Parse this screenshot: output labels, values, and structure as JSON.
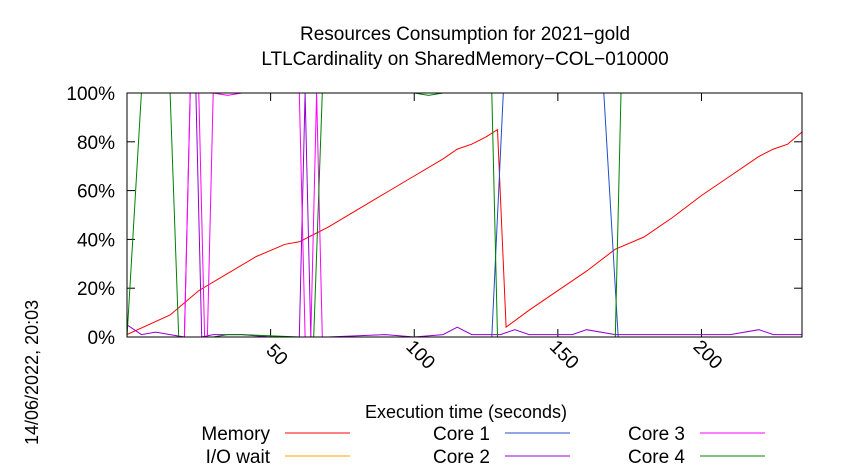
{
  "chart_data": {
    "type": "line",
    "title": "Resources Consumption for 2021−gold",
    "subtitle": "LTLCardinality on SharedMemory−COL−010000",
    "xlabel": "Execution time (seconds)",
    "ylabel": "",
    "side_label": "14/06/2022, 20:03",
    "xlim": [
      0,
      235
    ],
    "ylim": [
      0,
      100
    ],
    "x_ticks": [
      50,
      100,
      150,
      200
    ],
    "y_ticks": [
      0,
      20,
      40,
      60,
      80,
      100
    ],
    "y_tick_labels": [
      "0%",
      "20%",
      "40%",
      "60%",
      "80%",
      "100%"
    ],
    "grid": false,
    "legend_position": "bottom",
    "series": [
      {
        "name": "Memory",
        "color": "#ff0000",
        "points": [
          [
            0,
            1
          ],
          [
            15,
            9
          ],
          [
            25,
            19
          ],
          [
            35,
            26
          ],
          [
            45,
            33
          ],
          [
            55,
            38
          ],
          [
            60,
            39
          ],
          [
            65,
            42
          ],
          [
            70,
            45
          ],
          [
            80,
            52
          ],
          [
            90,
            59
          ],
          [
            100,
            66
          ],
          [
            110,
            73
          ],
          [
            115,
            77
          ],
          [
            120,
            79
          ],
          [
            125,
            82
          ],
          [
            129,
            85
          ],
          [
            132,
            4
          ],
          [
            140,
            11
          ],
          [
            150,
            19
          ],
          [
            160,
            27
          ],
          [
            170,
            36
          ],
          [
            180,
            41
          ],
          [
            190,
            49
          ],
          [
            200,
            58
          ],
          [
            210,
            66
          ],
          [
            220,
            74
          ],
          [
            225,
            77
          ],
          [
            230,
            79
          ],
          [
            235,
            84
          ]
        ]
      },
      {
        "name": "I/O wait",
        "color": "#ffa500",
        "points": [
          [
            0,
            0
          ],
          [
            235,
            0
          ]
        ]
      },
      {
        "name": "Core 1",
        "color": "#1f4fc8",
        "points": [
          [
            0,
            0
          ],
          [
            127,
            0
          ],
          [
            131,
            100
          ],
          [
            166,
            100
          ],
          [
            171,
            0
          ],
          [
            235,
            0
          ]
        ]
      },
      {
        "name": "Core 2",
        "color": "#9400d3",
        "points": [
          [
            0,
            5
          ],
          [
            5,
            1
          ],
          [
            10,
            2
          ],
          [
            15,
            1
          ],
          [
            20,
            0
          ],
          [
            22,
            100
          ],
          [
            24,
            100
          ],
          [
            26,
            0
          ],
          [
            30,
            1
          ],
          [
            40,
            1
          ],
          [
            50,
            0
          ],
          [
            60,
            0
          ],
          [
            62,
            100
          ],
          [
            64,
            0
          ],
          [
            70,
            0
          ],
          [
            90,
            1
          ],
          [
            100,
            0
          ],
          [
            110,
            1
          ],
          [
            115,
            4
          ],
          [
            120,
            1
          ],
          [
            130,
            1
          ],
          [
            135,
            3
          ],
          [
            140,
            1
          ],
          [
            155,
            1
          ],
          [
            160,
            3
          ],
          [
            170,
            1
          ],
          [
            180,
            1
          ],
          [
            200,
            1
          ],
          [
            210,
            1
          ],
          [
            220,
            3
          ],
          [
            225,
            1
          ],
          [
            235,
            1
          ]
        ]
      },
      {
        "name": "Core 3",
        "color": "#ff00ff",
        "points": [
          [
            0,
            0
          ],
          [
            20,
            0
          ],
          [
            22,
            100
          ],
          [
            25,
            100
          ],
          [
            27,
            0
          ],
          [
            28,
            0
          ],
          [
            30,
            100
          ],
          [
            35,
            99
          ],
          [
            40,
            100
          ],
          [
            60,
            100
          ],
          [
            62,
            0
          ],
          [
            64,
            0
          ],
          [
            66,
            100
          ],
          [
            68,
            0
          ],
          [
            72,
            0
          ],
          [
            90,
            0
          ],
          [
            100,
            0
          ],
          [
            130,
            0
          ],
          [
            235,
            0
          ]
        ]
      },
      {
        "name": "Core 4",
        "color": "#008000",
        "points": [
          [
            0,
            0
          ],
          [
            5,
            100
          ],
          [
            15,
            100
          ],
          [
            18,
            0
          ],
          [
            30,
            0
          ],
          [
            35,
            1
          ],
          [
            40,
            1
          ],
          [
            60,
            0
          ],
          [
            65,
            0
          ],
          [
            68,
            100
          ],
          [
            100,
            100
          ],
          [
            105,
            99
          ],
          [
            110,
            100
          ],
          [
            127,
            100
          ],
          [
            129,
            0
          ],
          [
            150,
            0
          ],
          [
            170,
            0
          ],
          [
            172,
            100
          ],
          [
            235,
            100
          ]
        ]
      }
    ]
  }
}
